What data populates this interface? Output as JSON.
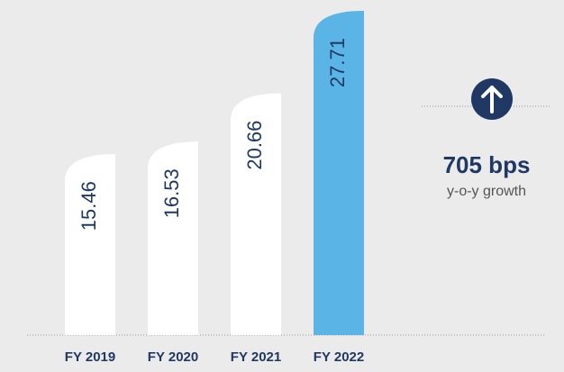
{
  "chart_data": {
    "type": "bar",
    "categories": [
      "FY 2019",
      "FY 2020",
      "FY 2021",
      "FY 2022"
    ],
    "values": [
      15.46,
      16.53,
      20.66,
      27.71
    ],
    "colors": [
      "#ffffff",
      "#ffffff",
      "#ffffff",
      "#5ab4e6"
    ],
    "annotations": [
      "705 bps",
      "y-o-y growth"
    ]
  }
}
